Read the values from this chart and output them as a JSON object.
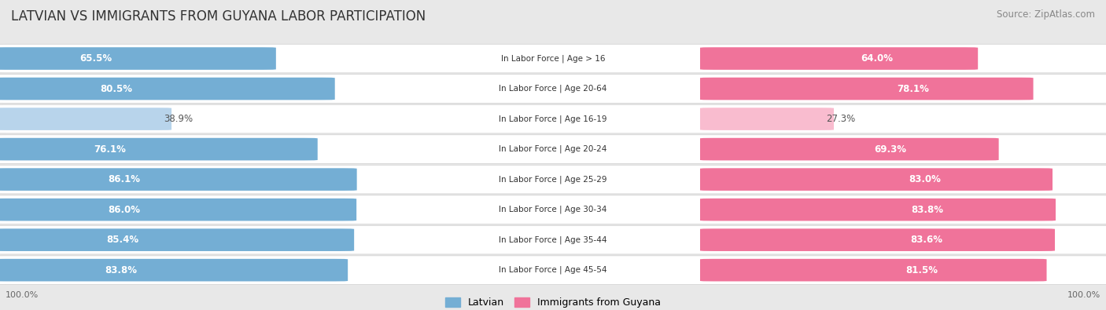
{
  "title": "LATVIAN VS IMMIGRANTS FROM GUYANA LABOR PARTICIPATION",
  "source": "Source: ZipAtlas.com",
  "categories": [
    "In Labor Force | Age > 16",
    "In Labor Force | Age 20-64",
    "In Labor Force | Age 16-19",
    "In Labor Force | Age 20-24",
    "In Labor Force | Age 25-29",
    "In Labor Force | Age 30-34",
    "In Labor Force | Age 35-44",
    "In Labor Force | Age 45-54"
  ],
  "latvian_values": [
    65.5,
    80.5,
    38.9,
    76.1,
    86.1,
    86.0,
    85.4,
    83.8
  ],
  "guyana_values": [
    64.0,
    78.1,
    27.3,
    69.3,
    83.0,
    83.8,
    83.6,
    81.5
  ],
  "latvian_color_full": "#74aed4",
  "latvian_color_light": "#b8d4eb",
  "guyana_color_full": "#f0739a",
  "guyana_color_light": "#f9bccf",
  "bg_color": "#e8e8e8",
  "row_bg_color": "#ffffff",
  "row_border_color": "#d0d0d0",
  "title_color": "#333333",
  "source_color": "#888888",
  "label_white": "#ffffff",
  "label_dark": "#555555",
  "title_fontsize": 12,
  "source_fontsize": 8.5,
  "bar_label_fontsize": 8.5,
  "category_fontsize": 7.5,
  "legend_fontsize": 9,
  "footer_fontsize": 8
}
